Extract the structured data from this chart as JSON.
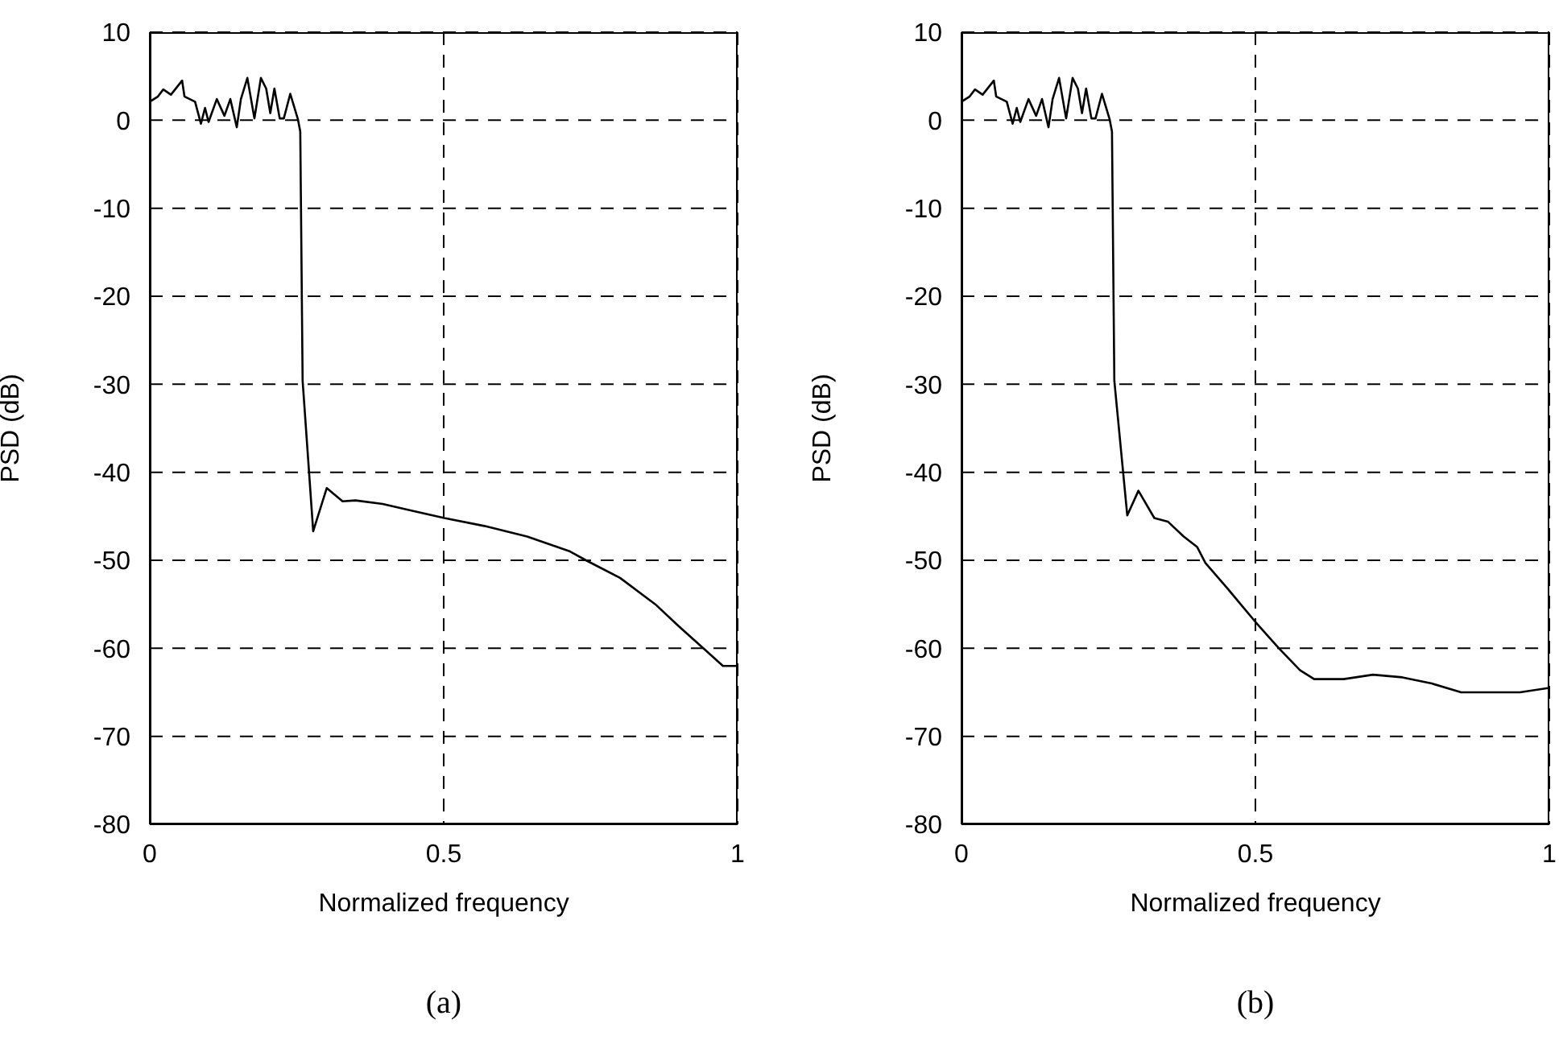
{
  "chart_data": [
    {
      "type": "line",
      "xlabel": "Normalized frequency",
      "ylabel": "PSD (dB)",
      "annotations": [
        "(a)"
      ],
      "xlim": [
        0,
        1
      ],
      "ylim": [
        -80,
        10
      ],
      "xticks": [
        0,
        0.5,
        1
      ],
      "yticks": [
        -80,
        -70,
        -60,
        -50,
        -40,
        -30,
        -20,
        -10,
        0,
        10
      ],
      "grid": true,
      "line_style": "solid",
      "x": [
        0,
        0.014,
        0.023,
        0.036,
        0.055,
        0.059,
        0.077,
        0.087,
        0.094,
        0.1,
        0.114,
        0.127,
        0.137,
        0.148,
        0.155,
        0.166,
        0.178,
        0.189,
        0.198,
        0.205,
        0.212,
        0.221,
        0.228,
        0.239,
        0.252,
        0.256,
        0.26,
        0.278,
        0.301,
        0.328,
        0.35,
        0.396,
        0.442,
        0.501,
        0.569,
        0.642,
        0.715,
        0.742,
        0.8,
        0.86,
        0.9,
        0.95,
        0.975,
        1
      ],
      "series": [
        {
          "color": "#000000",
          "values": [
            2.1,
            2.7,
            3.5,
            2.9,
            4.5,
            2.7,
            2.1,
            -0.4,
            1.4,
            -0.2,
            2.4,
            0.5,
            2.4,
            -0.8,
            2.4,
            4.8,
            0.2,
            4.8,
            3.6,
            0.8,
            3.6,
            0.2,
            0.2,
            3.0,
            0.1,
            -1.3,
            -29.6,
            -46.7,
            -41.8,
            -43.3,
            -43.2,
            -43.6,
            -44.3,
            -45.2,
            -46.1,
            -47.3,
            -49.0,
            -50,
            -52,
            -55,
            -57.5,
            -60.5,
            -62,
            -62
          ]
        }
      ]
    },
    {
      "type": "line",
      "xlabel": "Normalized frequency",
      "ylabel": "PSD (dB)",
      "annotations": [
        "(b)"
      ],
      "xlim": [
        0,
        1
      ],
      "ylim": [
        -80,
        10
      ],
      "xticks": [
        0,
        0.5,
        1
      ],
      "yticks": [
        -80,
        -70,
        -60,
        -50,
        -40,
        -30,
        -20,
        -10,
        0,
        10
      ],
      "grid": true,
      "line_style": "solid",
      "x": [
        0,
        0.014,
        0.023,
        0.036,
        0.055,
        0.059,
        0.077,
        0.087,
        0.094,
        0.1,
        0.114,
        0.127,
        0.137,
        0.148,
        0.155,
        0.166,
        0.178,
        0.189,
        0.198,
        0.205,
        0.212,
        0.221,
        0.228,
        0.239,
        0.252,
        0.256,
        0.26,
        0.282,
        0.301,
        0.328,
        0.351,
        0.378,
        0.401,
        0.415,
        0.45,
        0.5,
        0.54,
        0.576,
        0.6,
        0.65,
        0.7,
        0.75,
        0.8,
        0.85,
        0.9,
        0.95,
        1
      ],
      "series": [
        {
          "color": "#000000",
          "values": [
            2.1,
            2.7,
            3.5,
            2.9,
            4.5,
            2.7,
            2.1,
            -0.4,
            1.4,
            -0.2,
            2.4,
            0.5,
            2.4,
            -0.8,
            2.4,
            4.8,
            0.2,
            4.8,
            3.6,
            0.8,
            3.6,
            0.2,
            0.2,
            3.0,
            0.1,
            -1.3,
            -29.6,
            -44.9,
            -42.1,
            -45.2,
            -45.6,
            -47.3,
            -48.5,
            -50.3,
            -53,
            -57,
            -60,
            -62.5,
            -63.5,
            -63.5,
            -63,
            -63.3,
            -64,
            -65,
            -65,
            -65,
            -64.5
          ]
        }
      ]
    }
  ]
}
